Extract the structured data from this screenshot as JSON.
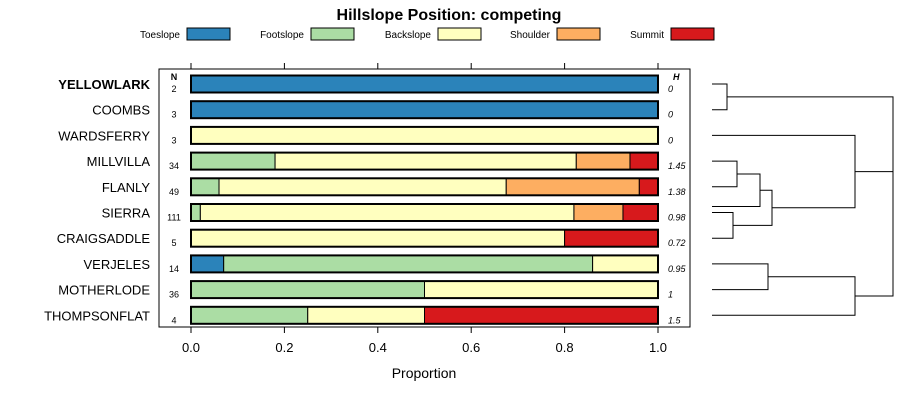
{
  "chart_data": {
    "type": "bar",
    "orientation": "horizontal",
    "stacked": true,
    "title": "Hillslope Position: competing",
    "xlabel": "Proportion",
    "xlim": [
      0,
      1
    ],
    "x_ticks": [
      "0.0",
      "0.2",
      "0.4",
      "0.6",
      "0.8",
      "1.0"
    ],
    "n_header": "N",
    "h_header": "H",
    "legend_position": "top",
    "grid": false,
    "series": [
      {
        "name": "Toeslope",
        "color": "#2b83ba"
      },
      {
        "name": "Footslope",
        "color": "#abdda4"
      },
      {
        "name": "Backslope",
        "color": "#ffffbf"
      },
      {
        "name": "Shoulder",
        "color": "#fdae61"
      },
      {
        "name": "Summit",
        "color": "#d7191c"
      }
    ],
    "rows": [
      {
        "label": "YELLOWLARK",
        "bold": true,
        "n": "2",
        "h": "0",
        "values": [
          1.0,
          0.0,
          0.0,
          0.0,
          0.0
        ]
      },
      {
        "label": "COOMBS",
        "bold": false,
        "n": "3",
        "h": "0",
        "values": [
          1.0,
          0.0,
          0.0,
          0.0,
          0.0
        ]
      },
      {
        "label": "WARDSFERRY",
        "bold": false,
        "n": "3",
        "h": "0",
        "values": [
          0.0,
          0.0,
          1.0,
          0.0,
          0.0
        ]
      },
      {
        "label": "MILLVILLA",
        "bold": false,
        "n": "34",
        "h": "1.45",
        "values": [
          0.0,
          0.18,
          0.645,
          0.115,
          0.06
        ]
      },
      {
        "label": "FLANLY",
        "bold": false,
        "n": "49",
        "h": "1.38",
        "values": [
          0.0,
          0.06,
          0.615,
          0.285,
          0.04
        ]
      },
      {
        "label": "SIERRA",
        "bold": false,
        "n": "111",
        "h": "0.98",
        "values": [
          0.0,
          0.02,
          0.8,
          0.105,
          0.075
        ]
      },
      {
        "label": "CRAIGSADDLE",
        "bold": false,
        "n": "5",
        "h": "0.72",
        "values": [
          0.0,
          0.0,
          0.8,
          0.0,
          0.2
        ]
      },
      {
        "label": "VERJELES",
        "bold": false,
        "n": "14",
        "h": "0.95",
        "values": [
          0.07,
          0.79,
          0.14,
          0.0,
          0.0
        ]
      },
      {
        "label": "MOTHERLODE",
        "bold": false,
        "n": "36",
        "h": "1",
        "values": [
          0.0,
          0.5,
          0.5,
          0.0,
          0.0
        ]
      },
      {
        "label": "THOMPSONFLAT",
        "bold": false,
        "n": "4",
        "h": "1.5",
        "values": [
          0.0,
          0.25,
          0.25,
          0.0,
          0.5
        ]
      }
    ]
  }
}
